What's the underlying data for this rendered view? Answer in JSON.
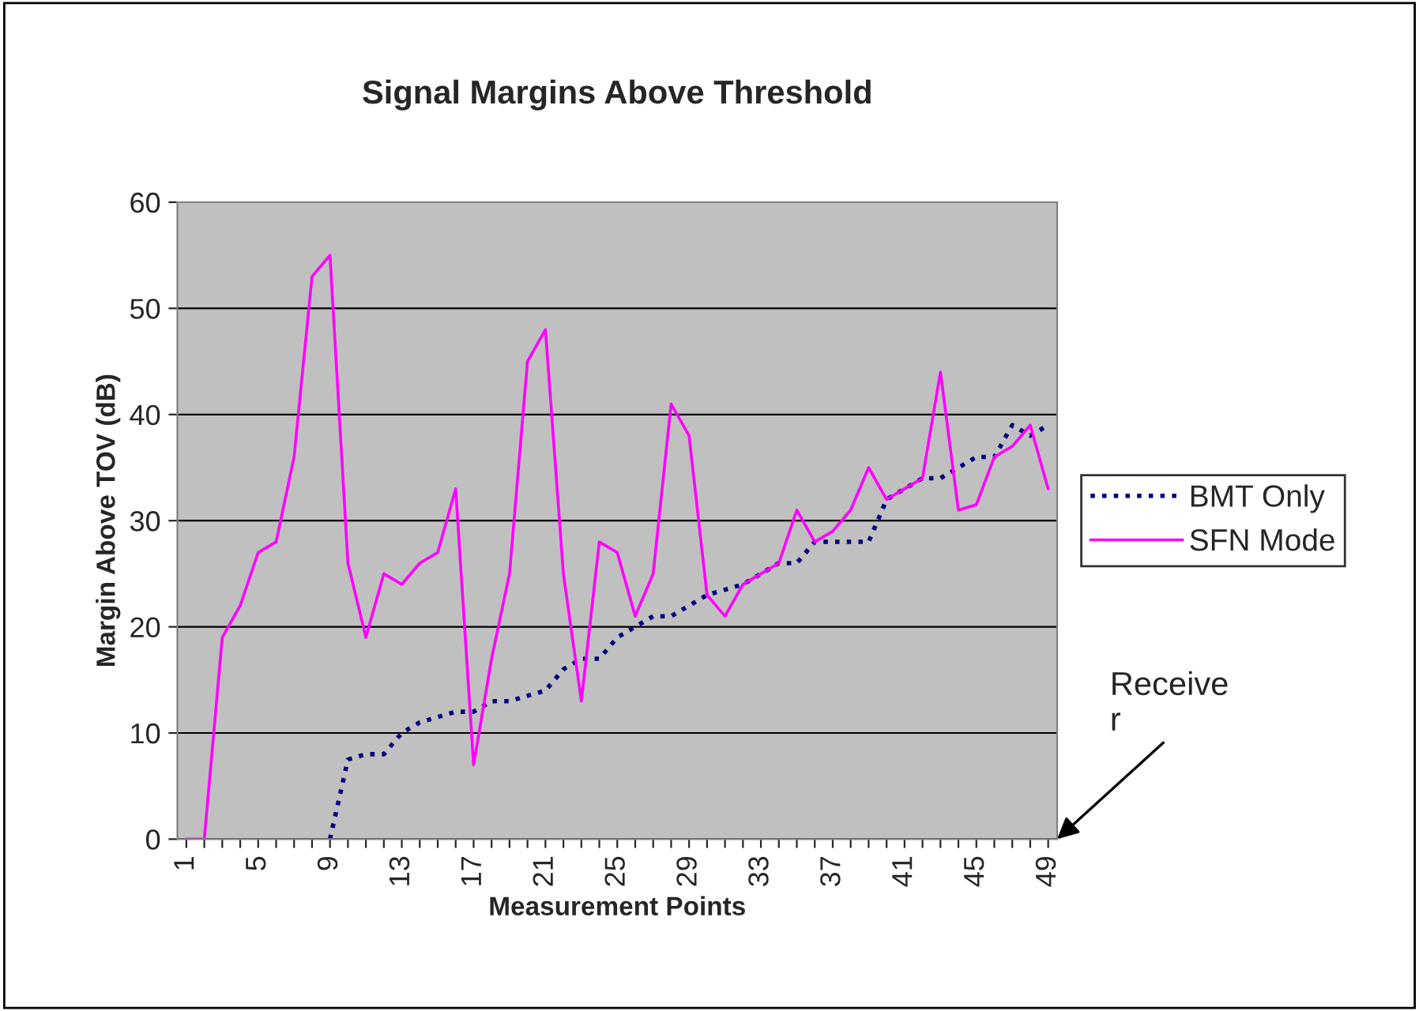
{
  "chart_data": {
    "type": "line",
    "title": "Signal Margins Above Threshold",
    "xlabel": "Measurement Points",
    "ylabel": "Margin Above TOV (dB)",
    "categories": [
      "1",
      null,
      null,
      null,
      "5",
      null,
      null,
      null,
      "9",
      null,
      null,
      null,
      "13",
      null,
      null,
      null,
      "17",
      null,
      null,
      null,
      "21",
      null,
      null,
      null,
      "25",
      null,
      null,
      null,
      "29",
      null,
      null,
      null,
      "33",
      null,
      null,
      null,
      "37",
      null,
      null,
      null,
      "41",
      null,
      null,
      null,
      "45",
      null,
      null,
      null,
      "49"
    ],
    "series": [
      {
        "name": "BMT Only",
        "color": "#000080",
        "line_style": "dotted",
        "values": [
          null,
          null,
          null,
          null,
          null,
          null,
          null,
          null,
          0,
          7.5,
          8,
          8,
          10,
          11,
          11.5,
          12,
          12,
          13,
          13,
          13.5,
          14,
          16,
          17,
          17,
          19,
          20,
          21,
          21,
          22,
          23,
          23.5,
          24,
          25,
          26,
          26,
          28,
          28,
          28,
          28,
          32,
          33,
          34,
          34,
          35,
          36,
          36,
          39,
          38,
          39
        ]
      },
      {
        "name": "SFN Mode",
        "color": "#ff00ff",
        "line_style": "solid",
        "values": [
          0,
          0,
          19,
          22,
          27,
          28,
          36,
          53,
          55,
          26,
          19,
          25,
          24,
          26,
          27,
          33,
          7,
          17,
          25,
          45,
          48,
          25,
          13,
          28,
          27,
          21,
          25,
          41,
          38,
          23,
          21,
          24,
          25,
          26,
          31,
          28,
          29,
          31,
          35,
          32,
          33,
          34,
          44,
          31,
          31.5,
          36,
          37,
          39,
          33
        ]
      }
    ],
    "ylim": [
      0,
      60
    ],
    "yticks": [
      0,
      10,
      20,
      30,
      40,
      50,
      60
    ],
    "grid": "y",
    "legend": "right",
    "marker": "none",
    "annotations": [
      "Receive\nr"
    ]
  }
}
